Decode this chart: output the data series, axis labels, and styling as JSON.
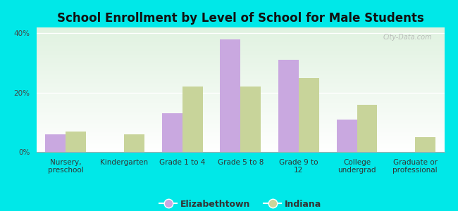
{
  "title": "School Enrollment by Level of School for Male Students",
  "categories": [
    "Nursery,\npreschool",
    "Kindergarten",
    "Grade 1 to 4",
    "Grade 5 to 8",
    "Grade 9 to\n12",
    "College\nundergrad",
    "Graduate or\nprofessional"
  ],
  "elizabethtown": [
    6,
    0,
    13,
    38,
    31,
    11,
    0
  ],
  "indiana": [
    7,
    6,
    22,
    22,
    25,
    16,
    5
  ],
  "bar_color_eliz": "#c9a8e0",
  "bar_color_indiana": "#c8d49a",
  "background_color": "#00e8e8",
  "plot_bg_color": "#e6f4e0",
  "ylim": [
    0,
    42
  ],
  "yticks": [
    0,
    20,
    40
  ],
  "ytick_labels": [
    "0%",
    "20%",
    "40%"
  ],
  "legend_eliz": "Elizabethtown",
  "legend_indiana": "Indiana",
  "title_fontsize": 12,
  "tick_fontsize": 7.5,
  "legend_fontsize": 9,
  "bar_width": 0.35
}
